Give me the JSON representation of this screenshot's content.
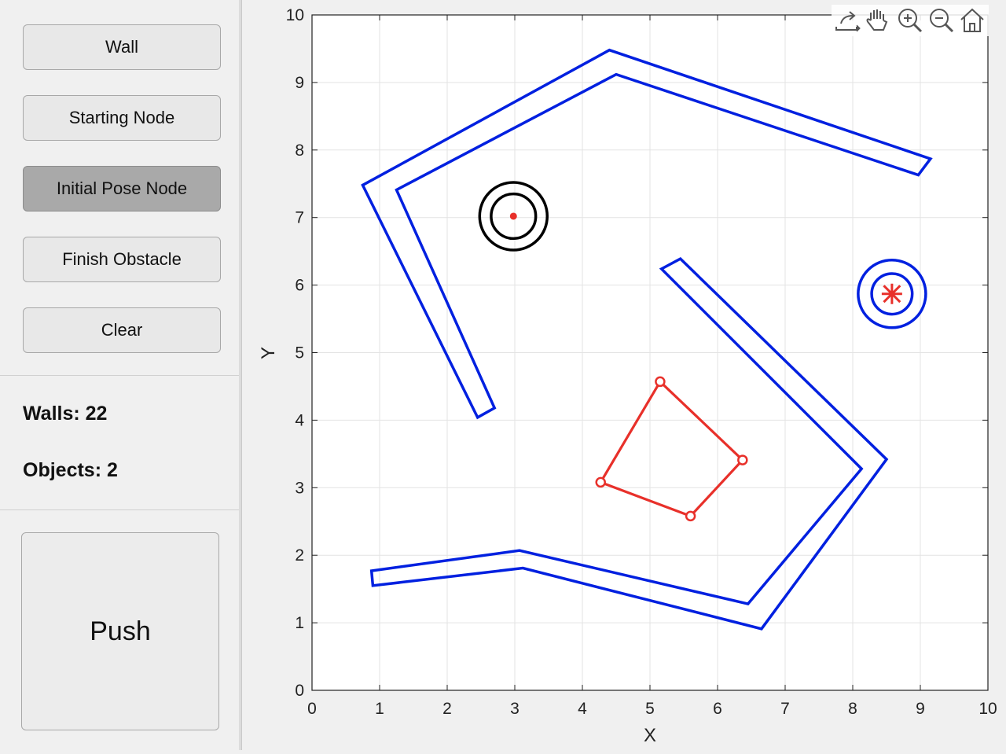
{
  "sidebar": {
    "buttons": [
      {
        "label": "Wall",
        "pressed": false
      },
      {
        "label": "Starting Node",
        "pressed": false
      },
      {
        "label": "Initial Pose Node",
        "pressed": true
      },
      {
        "label": "Finish Obstacle",
        "pressed": false
      },
      {
        "label": "Clear",
        "pressed": false
      }
    ],
    "walls_text": "Walls: 22",
    "objects_text": "Objects: 2",
    "push_label": "Push"
  },
  "toolbar": {
    "icons": [
      "export-icon",
      "pan-hand-icon",
      "zoom-in-icon",
      "zoom-out-icon",
      "home-icon"
    ]
  },
  "chart_data": {
    "type": "scatter",
    "xlabel": "X",
    "ylabel": "Y",
    "xlim": [
      0,
      10
    ],
    "ylim": [
      0,
      10
    ],
    "xticks": [
      "0",
      "1",
      "2",
      "3",
      "4",
      "5",
      "6",
      "7",
      "8",
      "9",
      "10"
    ],
    "yticks": [
      "0",
      "1",
      "2",
      "3",
      "4",
      "5",
      "6",
      "7",
      "8",
      "9",
      "10"
    ],
    "grid": true,
    "colors": {
      "wall": "#0020e0",
      "obstacle": "#e8302a",
      "start": "#000000",
      "goal": "#0020e0",
      "marker": "#e8302a"
    },
    "walls": [
      {
        "name": "wall-upper",
        "points": [
          [
            0.75,
            7.48
          ],
          [
            4.4,
            9.48
          ],
          [
            9.15,
            7.87
          ],
          [
            8.97,
            7.63
          ],
          [
            4.5,
            9.12
          ],
          [
            1.25,
            7.41
          ],
          [
            2.7,
            4.18
          ],
          [
            2.45,
            4.04
          ]
        ]
      },
      {
        "name": "wall-right",
        "points": [
          [
            5.17,
            6.24
          ],
          [
            5.45,
            6.39
          ],
          [
            8.5,
            3.42
          ],
          [
            6.65,
            0.91
          ],
          [
            3.12,
            1.81
          ],
          [
            0.9,
            1.55
          ],
          [
            0.88,
            1.77
          ],
          [
            3.07,
            2.07
          ],
          [
            6.45,
            1.28
          ],
          [
            8.13,
            3.28
          ]
        ]
      }
    ],
    "obstacle": {
      "points": [
        [
          5.15,
          4.57
        ],
        [
          6.37,
          3.41
        ],
        [
          5.6,
          2.58
        ],
        [
          4.27,
          3.08
        ]
      ]
    },
    "start_node": {
      "center": [
        2.98,
        7.02
      ],
      "radii": [
        0.5,
        0.33
      ]
    },
    "goal_node": {
      "center": [
        8.58,
        5.87
      ],
      "radii": [
        0.5,
        0.3
      ]
    }
  }
}
